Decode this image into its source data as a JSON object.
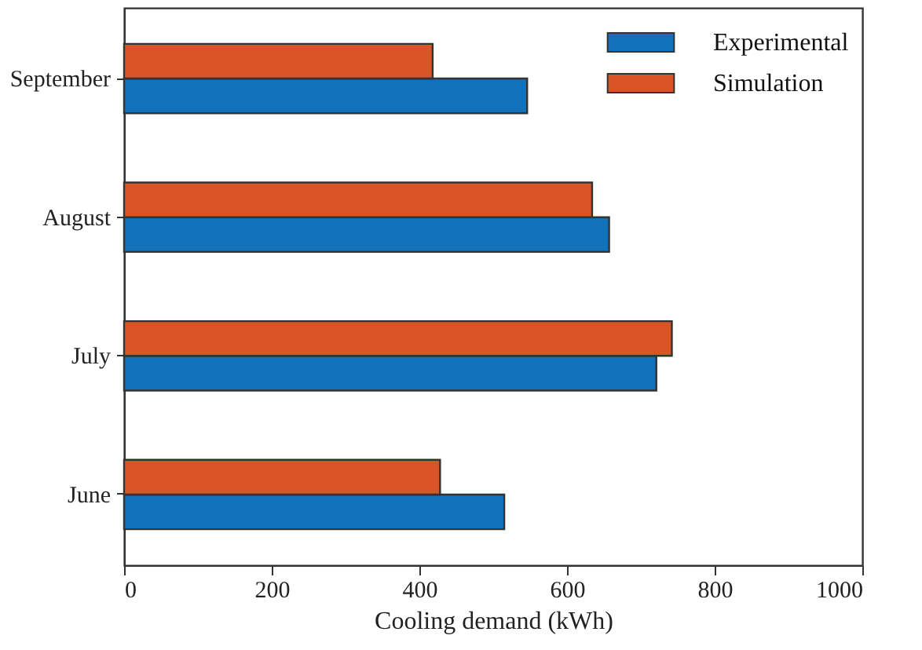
{
  "chart_data": {
    "type": "bar",
    "orientation": "horizontal",
    "xlabel": "Cooling demand (kWh)",
    "categories": [
      "September",
      "August",
      "July",
      "June"
    ],
    "series": [
      {
        "name": "Experimental",
        "color": "#1171b9",
        "values": [
          546,
          657,
          721,
          515
        ]
      },
      {
        "name": "Simulation",
        "color": "#d95527",
        "values": [
          418,
          634,
          742,
          428
        ]
      }
    ],
    "xlim": [
      0,
      1000
    ],
    "xticks": [
      0,
      200,
      400,
      600,
      800,
      1000
    ],
    "grid": false,
    "legend": "top right"
  }
}
